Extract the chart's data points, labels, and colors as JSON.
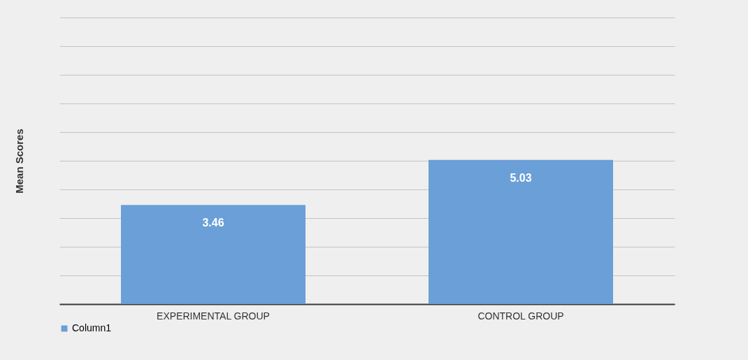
{
  "chart_data": {
    "type": "bar",
    "ylabel": "Mean Scores",
    "categories": [
      "EXPERIMENTAL GROUP",
      "CONTROL GROUP"
    ],
    "series": [
      {
        "name": "Column1",
        "color": "#6a9fd8",
        "values": [
          3.46,
          5.03
        ]
      }
    ],
    "ylim": [
      0,
      10
    ],
    "grid": true,
    "legend": "bottom",
    "data_labels": true
  }
}
